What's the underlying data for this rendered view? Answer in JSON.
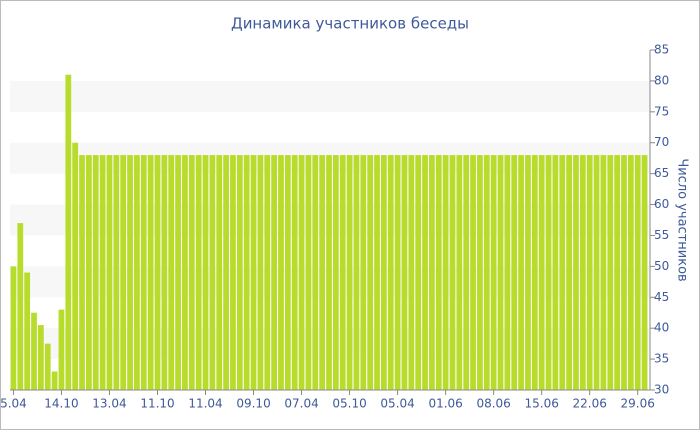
{
  "chart_data": {
    "type": "bar",
    "title": "Динамика участников беседы",
    "y_axis_label": "Число участников",
    "categories": [
      "5.04",
      null,
      null,
      null,
      null,
      null,
      null,
      "14.10",
      null,
      null,
      null,
      null,
      null,
      null,
      "13.04",
      null,
      null,
      null,
      null,
      null,
      null,
      "11.10",
      null,
      null,
      null,
      null,
      null,
      null,
      "11.04",
      null,
      null,
      null,
      null,
      null,
      null,
      "09.10",
      null,
      null,
      null,
      null,
      null,
      null,
      "07.04",
      null,
      null,
      null,
      null,
      null,
      null,
      "05.10",
      null,
      null,
      null,
      null,
      null,
      null,
      "05.04",
      null,
      null,
      null,
      null,
      null,
      null,
      "01.06",
      null,
      null,
      null,
      null,
      null,
      null,
      "08.06",
      null,
      null,
      null,
      null,
      null,
      null,
      "15.06",
      null,
      null,
      null,
      null,
      null,
      null,
      "22.06",
      null,
      null,
      null,
      null,
      null,
      null,
      "29.06",
      null
    ],
    "values": [
      50,
      57,
      49,
      42.5,
      40.5,
      37.5,
      33,
      43,
      81,
      70,
      68,
      68,
      68,
      68,
      68,
      68,
      68,
      68,
      68,
      68,
      68,
      68,
      68,
      68,
      68,
      68,
      68,
      68,
      68,
      68,
      68,
      68,
      68,
      68,
      68,
      68,
      68,
      68,
      68,
      68,
      68,
      68,
      68,
      68,
      68,
      68,
      68,
      68,
      68,
      68,
      68,
      68,
      68,
      68,
      68,
      68,
      68,
      68,
      68,
      68,
      68,
      68,
      68,
      68,
      68,
      68,
      68,
      68,
      68,
      68,
      68,
      68,
      68,
      68,
      68,
      68,
      68,
      68,
      68,
      68,
      68,
      68,
      68,
      68,
      68,
      68,
      68,
      68,
      68,
      68,
      68,
      68,
      68
    ],
    "color": "#b8dc2c",
    "ylim": [
      30,
      85
    ],
    "yticks": [
      30,
      35,
      40,
      45,
      50,
      55,
      60,
      65,
      70,
      75,
      80,
      85
    ],
    "grid": "bands",
    "y_axis_side": "right"
  }
}
